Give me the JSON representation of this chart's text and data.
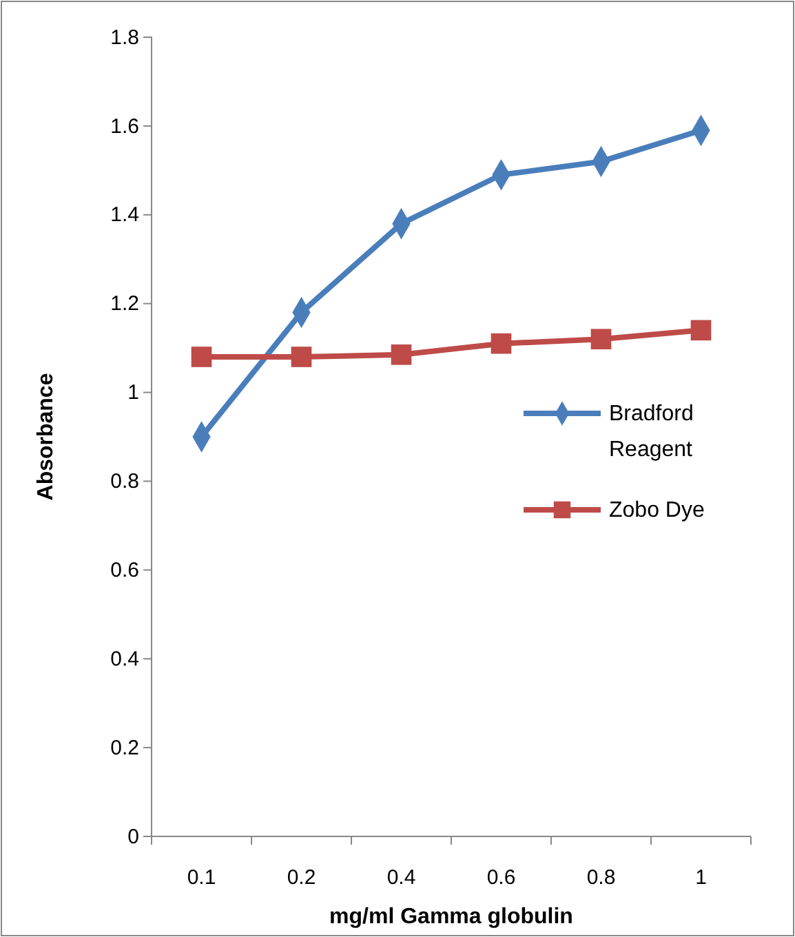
{
  "chart_data": {
    "type": "line",
    "xlabel": "mg/ml Gamma globulin",
    "ylabel": "Absorbance",
    "categories": [
      "0.1",
      "0.2",
      "0.4",
      "0.6",
      "0.8",
      "1"
    ],
    "series": [
      {
        "name": "Bradford Reagent",
        "color": "#4a7ebb",
        "marker": "diamond",
        "values": [
          0.9,
          1.18,
          1.38,
          1.49,
          1.52,
          1.59
        ]
      },
      {
        "name": "Zobo Dye",
        "color": "#be4b48",
        "marker": "square",
        "values": [
          1.08,
          1.08,
          1.085,
          1.11,
          1.12,
          1.14
        ]
      }
    ],
    "ylim": [
      0,
      1.8
    ],
    "yticks": [
      0,
      0.2,
      0.4,
      0.6,
      0.8,
      {
        "value": 1,
        "label": "1"
      },
      1.2,
      1.4,
      1.6,
      1.8
    ],
    "grid": false,
    "legend": "right",
    "line_style": "solid"
  }
}
